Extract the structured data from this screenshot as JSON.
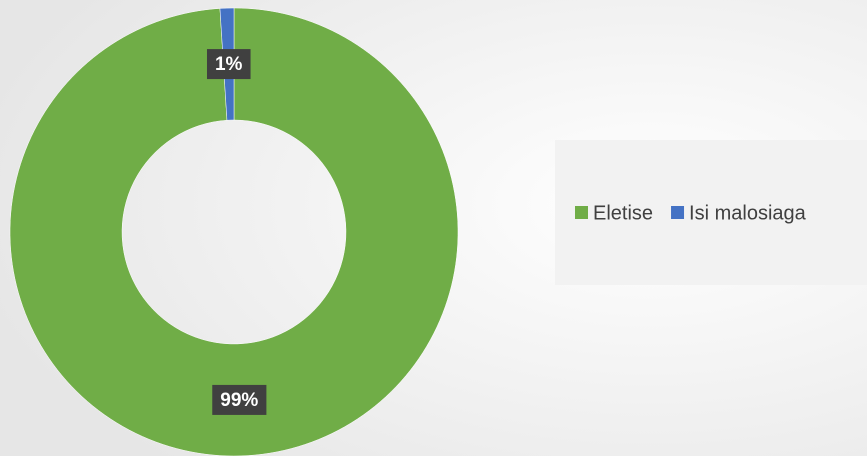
{
  "chart_data": {
    "type": "donut",
    "categories": [
      "Eletise",
      "Isi malosiaga"
    ],
    "values": [
      99,
      1
    ],
    "value_labels": [
      "99%",
      "1%"
    ],
    "colors": [
      "#70ad47",
      "#4472c4"
    ],
    "legend": "right"
  }
}
